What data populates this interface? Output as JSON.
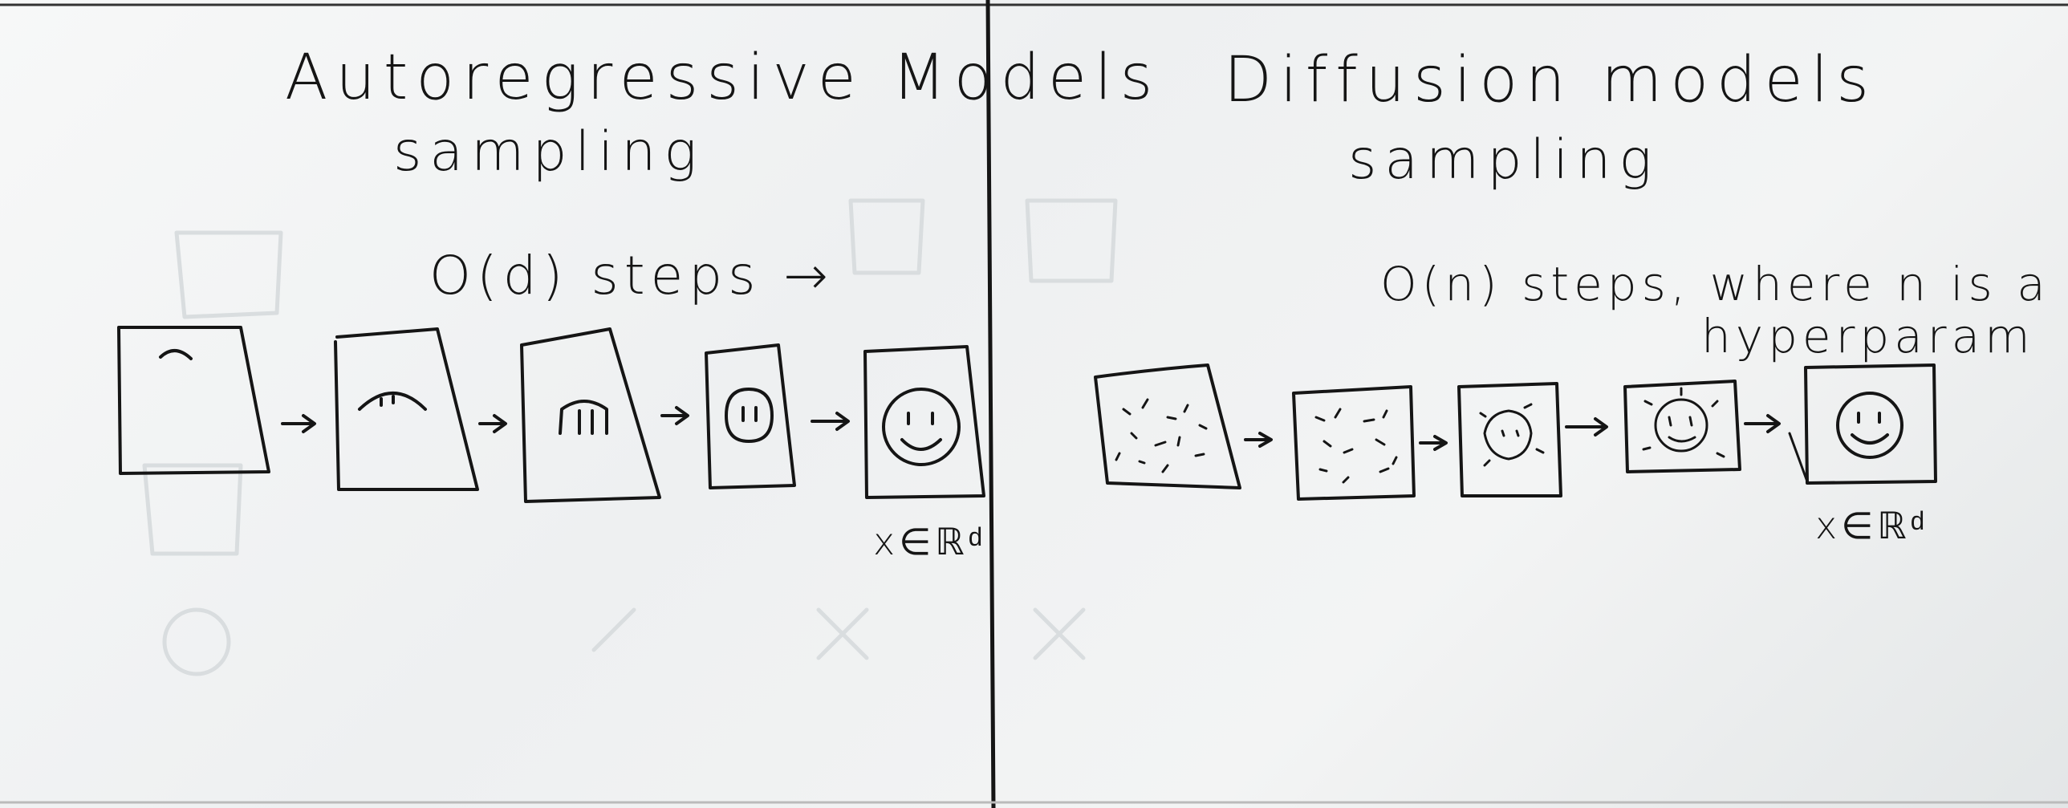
{
  "panels": {
    "left": {
      "title": "Autoregressive Models",
      "subtitle": "sampling",
      "steps": "O(d) steps →",
      "output_label": "x∈ℝᵈ"
    },
    "right": {
      "title": "Diffusion models",
      "subtitle": "sampling",
      "steps_line1": "O(n) steps, where n is a",
      "steps_line2": "hyperparam",
      "output_label": "x∈ℝᵈ"
    }
  },
  "colors": {
    "ink": "#151515",
    "board": "#eef0f1",
    "ghost": "#dfe3e4"
  }
}
